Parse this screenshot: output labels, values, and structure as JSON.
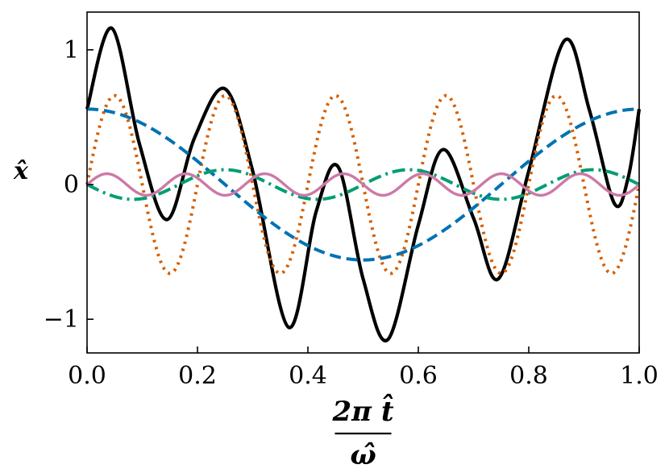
{
  "chart_data": {
    "type": "line",
    "xlabel_numerator": "2π t̂",
    "xlabel_denominator": "ω̂",
    "ylabel": "x̂",
    "xlim": [
      0.0,
      1.0
    ],
    "ylim": [
      -1.25,
      1.28
    ],
    "grid": false,
    "x_ticks": [
      {
        "value": 0.0,
        "label": "0.0"
      },
      {
        "value": 0.2,
        "label": "0.2"
      },
      {
        "value": 0.4,
        "label": "0.4"
      },
      {
        "value": 0.6,
        "label": "0.6"
      },
      {
        "value": 0.8,
        "label": "0.8"
      },
      {
        "value": 1.0,
        "label": "1.0"
      }
    ],
    "y_ticks": [
      {
        "value": -1,
        "label": "−1"
      },
      {
        "value": 0,
        "label": "0"
      },
      {
        "value": 1,
        "label": "1"
      }
    ],
    "series": [
      {
        "style": "solid",
        "color": "#000000",
        "points": [
          [
            0.0,
            0.56
          ],
          [
            0.045,
            1.16
          ],
          [
            0.095,
            0.3
          ],
          [
            0.145,
            -0.26
          ],
          [
            0.195,
            0.35
          ],
          [
            0.25,
            0.71
          ],
          [
            0.3,
            0.1
          ],
          [
            0.365,
            -1.06
          ],
          [
            0.415,
            -0.2
          ],
          [
            0.455,
            0.13
          ],
          [
            0.5,
            -0.7
          ],
          [
            0.545,
            -1.15
          ],
          [
            0.6,
            -0.3
          ],
          [
            0.645,
            0.26
          ],
          [
            0.7,
            -0.25
          ],
          [
            0.745,
            -0.7
          ],
          [
            0.8,
            0.1
          ],
          [
            0.865,
            1.07
          ],
          [
            0.91,
            0.55
          ],
          [
            0.955,
            -0.14
          ],
          [
            0.98,
            0.05
          ],
          [
            1.0,
            0.56
          ]
        ]
      },
      {
        "style": "dotted",
        "color": "#d55e00",
        "amplitude": 0.66,
        "frequency": 5,
        "phase_x": 0.05
      },
      {
        "style": "dashed",
        "color": "#0072b2",
        "amplitude": 0.56,
        "frequency": 1,
        "phase_x": 0.0
      },
      {
        "style": "dashdot",
        "color": "#009e73",
        "amplitude": 0.11,
        "frequency": 3,
        "phase_x": 0.25
      },
      {
        "style": "solid-thin",
        "color": "#cc79a7",
        "amplitude": 0.08,
        "frequency": 7,
        "phase_x": 0.036
      }
    ]
  }
}
